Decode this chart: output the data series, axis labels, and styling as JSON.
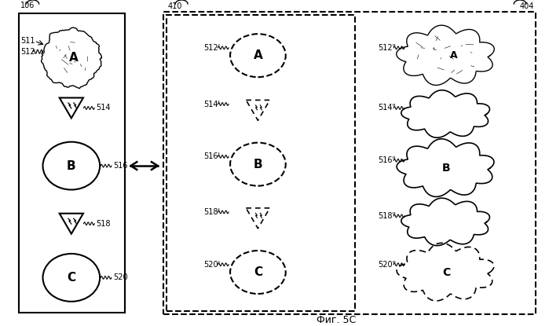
{
  "title": "Фиг. 5C",
  "bg_color": "#ffffff",
  "label_106": "106",
  "label_511": "511",
  "label_512": "512",
  "label_514": "514",
  "label_516": "516",
  "label_518": "518",
  "label_520": "520",
  "label_410": "410",
  "label_404": "404",
  "label_512p": "512'",
  "label_514p": "514'",
  "label_516p": "516'",
  "label_518p": "518'",
  "label_520p": "520'",
  "label_512pp": "512\"",
  "label_514pp": "514\"",
  "label_516pp": "516\"",
  "label_518pp": "518\"",
  "label_520pp": "520\""
}
